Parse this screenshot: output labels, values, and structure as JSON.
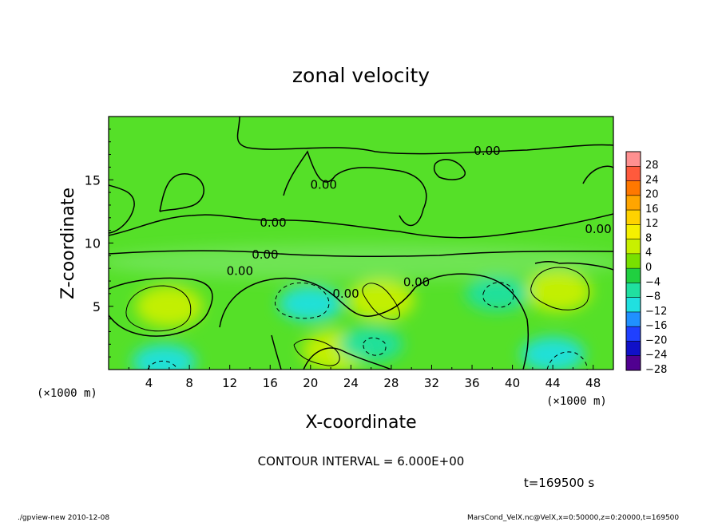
{
  "chart_data": {
    "type": "heatmap",
    "title": "zonal velocity",
    "xlabel": "X-coordinate",
    "ylabel": "Z-coordinate",
    "x_unit_label": "(×1000 m)",
    "y_unit_label": "(×1000 m)",
    "xlim": [
      0,
      50
    ],
    "ylim": [
      0,
      20
    ],
    "x_ticks": [
      4,
      8,
      12,
      16,
      20,
      24,
      28,
      32,
      36,
      40,
      44,
      48
    ],
    "y_ticks": [
      5,
      10,
      15
    ],
    "contour_interval_text": "CONTOUR INTERVAL = 6.000E+00",
    "time_text": "t=169500 s",
    "contour_labels": [
      {
        "text": "0.00",
        "x": 37.5,
        "z": 17.3
      },
      {
        "text": "0.00",
        "x": 21.3,
        "z": 14.6
      },
      {
        "text": "0.00",
        "x": 16.3,
        "z": 11.6
      },
      {
        "text": "0.00",
        "x": 15.5,
        "z": 9.1
      },
      {
        "text": "0.00",
        "x": 13.0,
        "z": 7.8
      },
      {
        "text": "0.00",
        "x": 23.5,
        "z": 6.0
      },
      {
        "text": "0.00",
        "x": 30.5,
        "z": 6.9
      },
      {
        "text": "0.00",
        "x": 48.5,
        "z": 11.1
      }
    ],
    "features": [
      {
        "kind": "max",
        "x": 6,
        "z": 5,
        "value": 8
      },
      {
        "kind": "max",
        "x": 44.5,
        "z": 6.2,
        "value": 8
      },
      {
        "kind": "max",
        "x": 27,
        "z": 5.5,
        "value": 6
      },
      {
        "kind": "max",
        "x": 22.5,
        "z": 1.5,
        "value": 5
      },
      {
        "kind": "min",
        "x": 20,
        "z": 5.2,
        "value": -8
      },
      {
        "kind": "min",
        "x": 5.5,
        "z": 0.6,
        "value": -10
      },
      {
        "kind": "min",
        "x": 38.5,
        "z": 6,
        "value": -7
      },
      {
        "kind": "min",
        "x": 44,
        "z": 1.2,
        "value": -10
      },
      {
        "kind": "min",
        "x": 26,
        "z": 2,
        "value": -7
      }
    ],
    "colorbar": {
      "levels": [
        28,
        24,
        20,
        16,
        12,
        8,
        4,
        0,
        -4,
        -8,
        -12,
        -16,
        -20,
        -24,
        -28
      ],
      "labels": [
        "28",
        "24",
        "20",
        "16",
        "12",
        "8",
        "4",
        "0",
        "−4",
        "−8",
        "−12",
        "−16",
        "−20",
        "−24",
        "−28"
      ],
      "colors": [
        "#ff9090",
        "#ff5a3c",
        "#ff7800",
        "#ffa500",
        "#ffd200",
        "#f5f000",
        "#c8f000",
        "#78e000",
        "#20d040",
        "#20e0a0",
        "#20e0e0",
        "#2090ff",
        "#1f40ff",
        "#1010c8",
        "#500090"
      ]
    },
    "background_color": "#55e028"
  },
  "footer": {
    "left": "./gpview-new   2010-12-08",
    "right": "MarsCond_VelX.nc@VelX,x=0:50000,z=0:20000,t=169500"
  }
}
